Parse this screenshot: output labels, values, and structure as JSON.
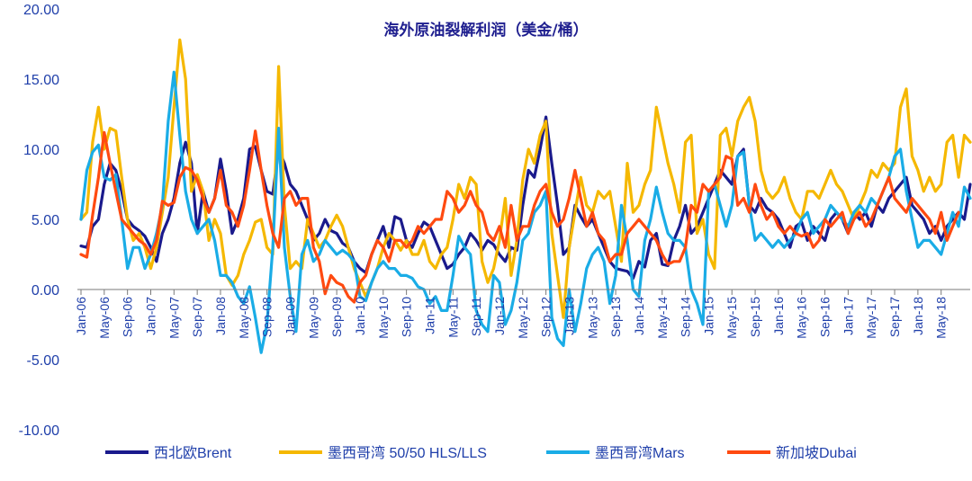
{
  "chart_data": {
    "type": "line",
    "title": "海外原油裂解利润（美金/桶）",
    "xlabel": "",
    "ylabel": "",
    "ylim": [
      -10,
      20
    ],
    "yticks": [
      "20.00",
      "15.00",
      "10.00",
      "5.00",
      "0.00",
      "-5.00",
      "-10.00"
    ],
    "x_tick_labels": [
      "Jan-06",
      "May-06",
      "Sep-06",
      "Jan-07",
      "May-07",
      "Sep-07",
      "Jan-08",
      "May-08",
      "Sep-08",
      "Jan-09",
      "May-09",
      "Sep-09",
      "Jan-10",
      "May-10",
      "Sep-10",
      "Jan-11",
      "May-11",
      "Sep-11",
      "Jan-12",
      "May-12",
      "Sep-12",
      "Jan-13",
      "May-13",
      "Sep-13",
      "Jan-14",
      "May-14",
      "Sep-14",
      "Jan-15",
      "May-15",
      "Sep-15",
      "Jan-16",
      "May-16",
      "Sep-16",
      "Jan-17",
      "May-17",
      "Sep-17",
      "Jan-18",
      "May-18"
    ],
    "legend_position": "bottom",
    "grid": false,
    "series": [
      {
        "name": "西北欧Brent",
        "color": "#1a1a8c",
        "values": [
          3.1,
          3.0,
          4.5,
          5.0,
          7.5,
          9.0,
          8.5,
          7.0,
          5.0,
          4.5,
          4.2,
          3.8,
          3.0,
          2.0,
          4.0,
          5.0,
          6.5,
          9.0,
          10.5,
          9.0,
          4.0,
          7.0,
          5.5,
          6.5,
          9.3,
          7.0,
          4.0,
          5.0,
          6.5,
          10.0,
          10.2,
          8.5,
          7.0,
          6.8,
          10.0,
          9.0,
          7.5,
          7.0,
          6.0,
          5.0,
          3.5,
          4.0,
          5.0,
          4.2,
          4.0,
          3.3,
          3.0,
          2.0,
          1.5,
          1.2,
          2.5,
          3.5,
          4.5,
          3.0,
          5.2,
          5.0,
          3.5,
          3.0,
          4.0,
          4.8,
          4.5,
          3.5,
          2.5,
          1.5,
          1.8,
          2.5,
          3.0,
          4.0,
          3.5,
          2.8,
          3.5,
          3.2,
          2.5,
          2.0,
          3.0,
          2.8,
          6.0,
          8.5,
          8.0,
          10.0,
          12.3,
          9.0,
          6.0,
          2.5,
          3.0,
          6.0,
          5.2,
          4.5,
          5.0,
          4.0,
          3.0,
          2.0,
          1.5,
          1.4,
          1.3,
          0.8,
          2.0,
          1.6,
          3.5,
          4.0,
          1.8,
          1.7,
          3.5,
          4.5,
          6.0,
          4.0,
          4.5,
          5.5,
          6.5,
          7.5,
          8.5,
          8.0,
          7.5,
          9.5,
          10.0,
          6.0,
          5.5,
          6.5,
          5.8,
          5.5,
          5.0,
          4.0,
          3.0,
          4.5,
          4.8,
          3.5,
          4.5,
          4.0,
          3.5,
          5.0,
          5.5,
          5.0,
          4.0,
          5.5,
          5.0,
          5.5,
          4.5,
          6.0,
          5.5,
          6.5,
          7.0,
          7.5,
          8.0,
          6.0,
          5.5,
          5.0,
          4.0,
          4.5,
          3.5,
          4.5,
          5.0,
          5.5,
          5.0,
          7.5
        ]
      },
      {
        "name": "墨西哥湾 50/50 HLS/LLS",
        "color": "#f5b800",
        "values": [
          5.0,
          5.5,
          10.5,
          13.0,
          10.0,
          11.5,
          11.3,
          8.0,
          5.0,
          3.5,
          4.0,
          3.0,
          1.5,
          3.0,
          5.5,
          8.0,
          13.0,
          17.8,
          15.0,
          7.0,
          8.2,
          7.0,
          3.5,
          5.0,
          4.0,
          1.0,
          0.3,
          1.0,
          2.5,
          3.5,
          4.8,
          5.0,
          3.0,
          2.5,
          15.9,
          6.0,
          1.5,
          2.0,
          1.5,
          5.0,
          4.0,
          3.0,
          3.5,
          4.5,
          5.3,
          4.5,
          3.0,
          1.5,
          0.5,
          -0.5,
          0.5,
          1.5,
          3.0,
          4.0,
          3.5,
          2.8,
          3.5,
          2.5,
          2.5,
          3.5,
          2.0,
          1.5,
          2.5,
          3.0,
          5.0,
          7.5,
          6.5,
          8.0,
          7.5,
          2.0,
          0.5,
          1.5,
          3.5,
          6.5,
          1.0,
          3.5,
          7.8,
          10.0,
          9.0,
          11.0,
          12.0,
          4.0,
          1.0,
          -2.0,
          3.0,
          5.5,
          8.0,
          6.0,
          5.5,
          7.0,
          6.5,
          7.0,
          4.5,
          2.0,
          9.0,
          5.5,
          6.0,
          7.5,
          8.5,
          13.0,
          11.0,
          9.0,
          7.5,
          5.5,
          10.5,
          11.0,
          4.0,
          5.0,
          2.5,
          1.5,
          11.0,
          11.5,
          9.5,
          12.0,
          13.0,
          13.7,
          12.0,
          8.5,
          7.0,
          6.5,
          7.0,
          8.0,
          6.5,
          5.5,
          5.0,
          7.0,
          7.0,
          6.5,
          7.5,
          8.5,
          7.5,
          7.0,
          6.0,
          5.0,
          6.0,
          7.0,
          8.5,
          8.0,
          9.0,
          8.5,
          9.0,
          13.0,
          14.3,
          9.5,
          8.5,
          7.0,
          8.0,
          7.0,
          7.5,
          10.5,
          11.0,
          8.0,
          11.0,
          10.5
        ]
      },
      {
        "name": "墨西哥湾Mars",
        "color": "#1aace6",
        "values": [
          5.0,
          8.5,
          9.8,
          10.3,
          8.0,
          7.8,
          8.2,
          5.0,
          1.5,
          3.0,
          3.0,
          1.5,
          2.5,
          4.0,
          6.0,
          12.0,
          15.5,
          11.0,
          7.0,
          5.0,
          4.0,
          4.5,
          5.0,
          3.5,
          1.0,
          1.0,
          0.5,
          -0.5,
          -1.0,
          0.2,
          -2.0,
          -4.5,
          -2.5,
          3.0,
          11.5,
          3.0,
          -0.5,
          -3.0,
          2.5,
          3.5,
          2.0,
          2.5,
          3.5,
          3.0,
          2.5,
          2.8,
          2.5,
          2.0,
          -0.5,
          -0.8,
          0.5,
          1.5,
          2.0,
          1.5,
          1.5,
          1.0,
          1.0,
          0.8,
          0.2,
          0.0,
          -1.0,
          -0.5,
          -1.5,
          -1.5,
          1.0,
          3.8,
          3.0,
          2.5,
          -1.5,
          -2.5,
          -3.0,
          1.0,
          0.5,
          -2.5,
          -1.5,
          0.5,
          3.5,
          4.0,
          5.5,
          6.0,
          7.0,
          -2.0,
          -3.5,
          -4.0,
          0.0,
          -3.0,
          -1.0,
          1.5,
          2.5,
          3.0,
          2.0,
          -1.0,
          1.0,
          6.0,
          3.5,
          0.0,
          -0.5,
          3.5,
          5.0,
          7.3,
          5.5,
          4.0,
          3.5,
          3.5,
          3.0,
          0.0,
          -1.0,
          -2.5,
          7.0,
          7.5,
          6.0,
          4.5,
          6.0,
          9.5,
          9.8,
          6.0,
          3.5,
          4.0,
          3.5,
          3.0,
          3.5,
          3.0,
          3.5,
          4.0,
          5.0,
          5.5,
          4.0,
          4.5,
          5.0,
          6.0,
          5.5,
          5.0,
          4.5,
          5.5,
          6.0,
          5.5,
          6.5,
          6.0,
          7.0,
          8.0,
          9.5,
          10.0,
          7.0,
          5.0,
          3.0,
          3.5,
          3.5,
          3.0,
          2.5,
          4.0,
          5.5,
          4.5,
          7.3,
          6.5
        ]
      },
      {
        "name": "新加坡Dubai",
        "color": "#ff4a10",
        "values": [
          2.5,
          2.3,
          5.3,
          8.0,
          11.2,
          9.0,
          7.0,
          5.0,
          4.5,
          4.0,
          3.5,
          3.2,
          2.5,
          3.5,
          6.3,
          6.0,
          6.2,
          8.0,
          8.7,
          8.5,
          7.8,
          6.5,
          5.5,
          6.5,
          8.5,
          6.0,
          5.5,
          4.5,
          6.0,
          8.5,
          11.3,
          8.5,
          6.0,
          4.0,
          3.0,
          6.5,
          7.0,
          6.0,
          6.5,
          6.5,
          3.0,
          2.0,
          -0.3,
          1.0,
          0.5,
          0.3,
          -0.5,
          -0.9,
          0.5,
          1.0,
          2.5,
          3.5,
          3.0,
          2.0,
          3.5,
          3.5,
          3.0,
          3.5,
          4.5,
          4.0,
          4.5,
          5.0,
          5.0,
          7.0,
          6.5,
          5.5,
          6.0,
          7.0,
          6.0,
          5.5,
          4.0,
          3.5,
          4.5,
          3.0,
          6.0,
          3.5,
          4.5,
          4.5,
          6.0,
          7.0,
          7.5,
          5.5,
          4.5,
          5.0,
          6.5,
          8.5,
          6.5,
          4.5,
          5.5,
          4.0,
          3.5,
          2.0,
          2.5,
          2.5,
          4.0,
          4.5,
          5.0,
          4.5,
          4.0,
          3.5,
          2.5,
          1.8,
          2.0,
          2.0,
          3.0,
          6.0,
          5.5,
          7.5,
          7.0,
          7.5,
          8.0,
          9.5,
          9.3,
          6.0,
          6.5,
          5.5,
          7.5,
          6.0,
          5.0,
          5.5,
          4.5,
          4.0,
          4.5,
          4.0,
          3.8,
          4.0,
          3.0,
          3.5,
          5.0,
          4.5,
          5.0,
          5.5,
          4.0,
          5.0,
          5.5,
          4.5,
          5.0,
          6.0,
          7.0,
          8.0,
          6.5,
          6.0,
          5.5,
          6.5,
          6.0,
          5.5,
          5.0,
          4.0,
          5.5,
          3.5,
          4.5,
          5.5
        ]
      }
    ]
  }
}
